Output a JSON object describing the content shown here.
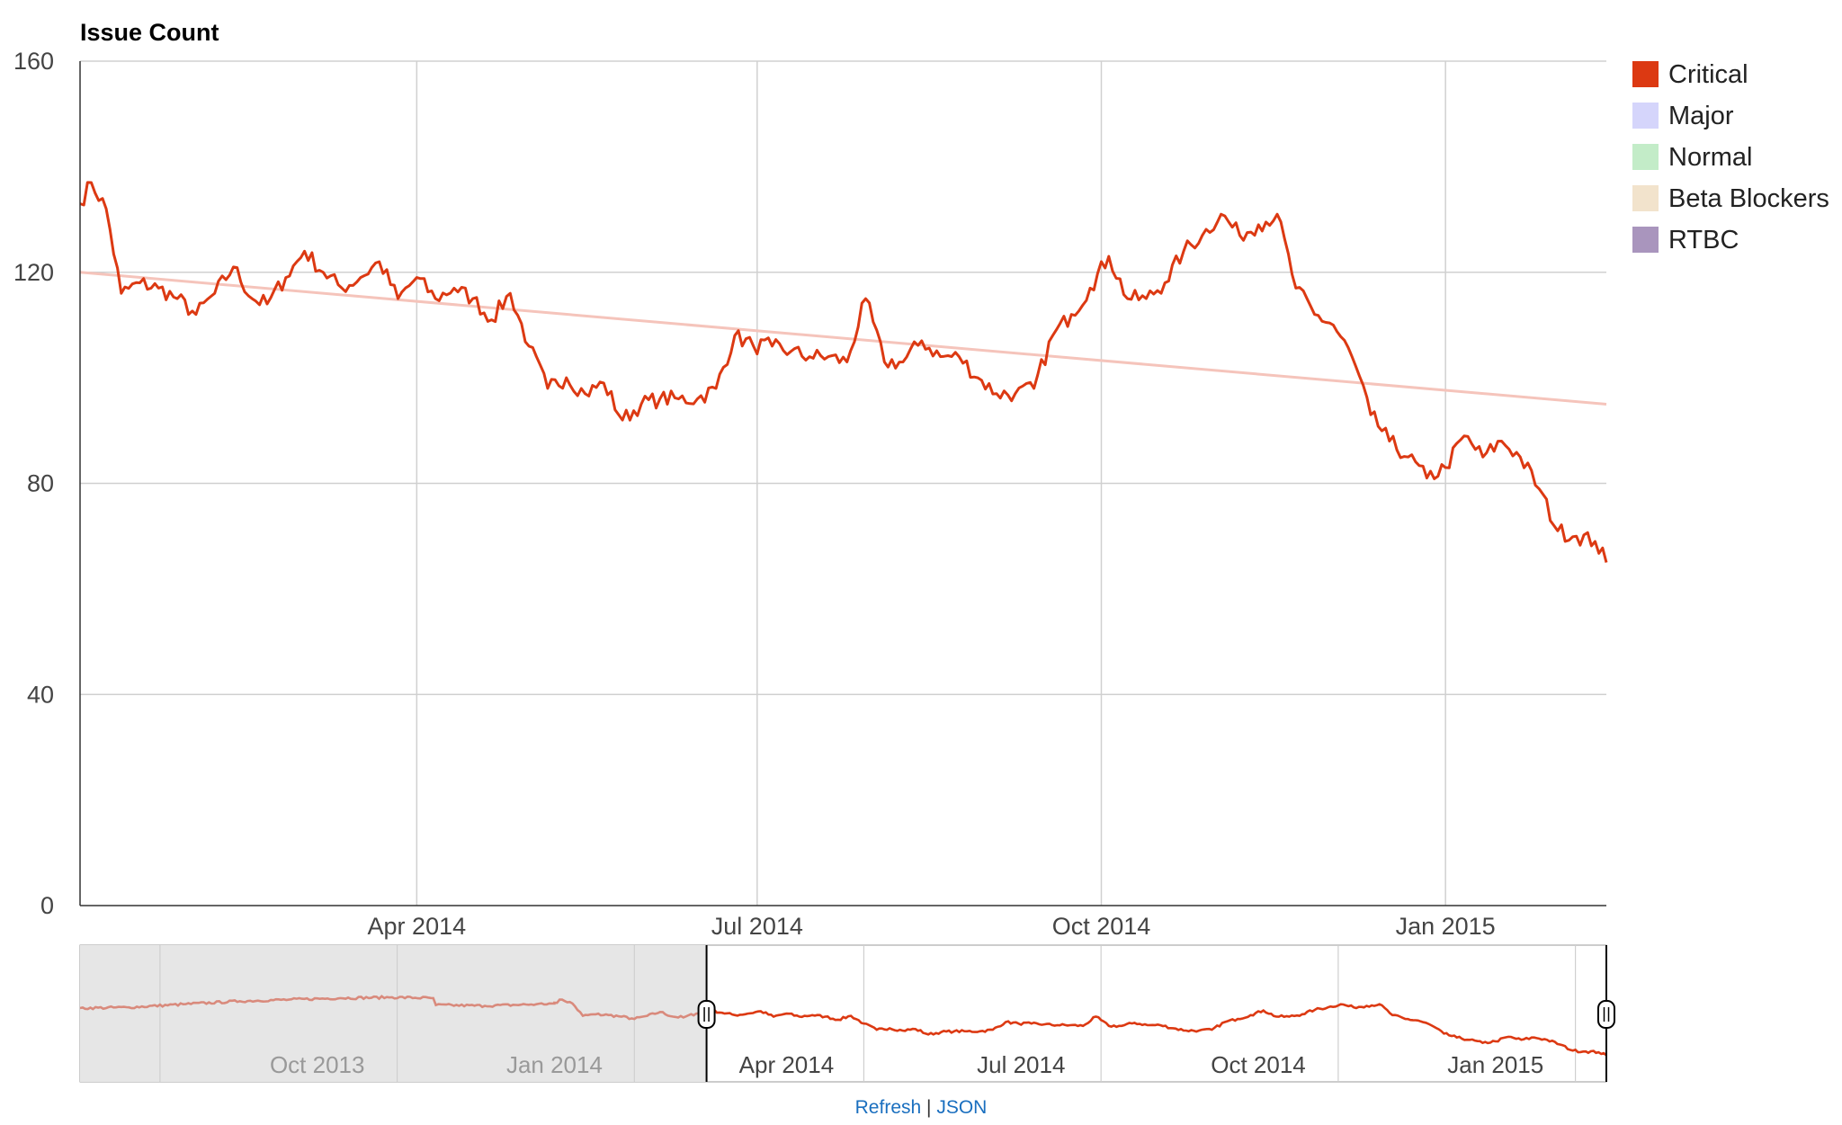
{
  "chart_data": {
    "type": "line",
    "title": "Issue Count",
    "x_axis": {
      "ticks": [
        "Apr 2014",
        "Jul 2014",
        "Oct 2014",
        "Jan 2015"
      ]
    },
    "y_axis": {
      "ticks": [
        "160",
        "120",
        "80",
        "40",
        "0"
      ],
      "ylim": [
        0,
        160
      ]
    },
    "grid": true,
    "legend": {
      "position": "right",
      "items": [
        {
          "label": "Critical",
          "color": "#dc3912"
        },
        {
          "label": "Major",
          "color": "#d5d5fb"
        },
        {
          "label": "Normal",
          "color": "#c3ecc8"
        },
        {
          "label": "Beta Blockers",
          "color": "#f2e3cc"
        },
        {
          "label": "RTBC",
          "color": "#a995bd"
        }
      ]
    },
    "series": [
      {
        "name": "Critical",
        "color": "#dc3912",
        "x": [
          "2014-01-01",
          "2014-01-04",
          "2014-01-08",
          "2014-01-12",
          "2014-01-17",
          "2014-01-22",
          "2014-01-27",
          "2014-02-01",
          "2014-02-06",
          "2014-02-11",
          "2014-02-16",
          "2014-02-20",
          "2014-02-25",
          "2014-03-02",
          "2014-03-07",
          "2014-03-12",
          "2014-03-17",
          "2014-03-22",
          "2014-03-27",
          "2014-04-01",
          "2014-04-06",
          "2014-04-11",
          "2014-04-16",
          "2014-04-21",
          "2014-04-26",
          "2014-05-01",
          "2014-05-06",
          "2014-05-11",
          "2014-05-16",
          "2014-05-21",
          "2014-05-26",
          "2014-05-31",
          "2014-06-05",
          "2014-06-10",
          "2014-06-15",
          "2014-06-20",
          "2014-06-25",
          "2014-06-30",
          "2014-07-05",
          "2014-07-10",
          "2014-07-15",
          "2014-07-20",
          "2014-07-25",
          "2014-07-30",
          "2014-08-04",
          "2014-08-09",
          "2014-08-14",
          "2014-08-19",
          "2014-08-24",
          "2014-08-29",
          "2014-09-03",
          "2014-09-08",
          "2014-09-13",
          "2014-09-18",
          "2014-09-23",
          "2014-09-28",
          "2014-10-03",
          "2014-10-08",
          "2014-10-13",
          "2014-10-18",
          "2014-10-23",
          "2014-10-28",
          "2014-11-02",
          "2014-11-07",
          "2014-11-12",
          "2014-11-17",
          "2014-11-22",
          "2014-11-27",
          "2014-12-02",
          "2014-12-07",
          "2014-12-12",
          "2014-12-17",
          "2014-12-22",
          "2014-12-27",
          "2015-01-01",
          "2015-01-06",
          "2015-01-11",
          "2015-01-16",
          "2015-01-21",
          "2015-01-26",
          "2015-01-31",
          "2015-02-05",
          "2015-02-10",
          "2015-02-13"
        ],
        "values": [
          133,
          137,
          132,
          116,
          118,
          117,
          115,
          112,
          116,
          121,
          115,
          114,
          119,
          124,
          120,
          117,
          119,
          122,
          115,
          119,
          115,
          117,
          115,
          111,
          116,
          106,
          98,
          100,
          97,
          99,
          92,
          95,
          96,
          96,
          96,
          98,
          108,
          106,
          106,
          105,
          104,
          104,
          103,
          115,
          103,
          103,
          107,
          104,
          104,
          100,
          97,
          97,
          98,
          108,
          112,
          117,
          123,
          115,
          115,
          118,
          124,
          127,
          131,
          127,
          129,
          131,
          117,
          112,
          110,
          104,
          93,
          88,
          85,
          81,
          83,
          89,
          85,
          88,
          85,
          79,
          71,
          70,
          69,
          65
        ]
      }
    ],
    "trendline": {
      "x": [
        "2014-01-01",
        "2015-02-13"
      ],
      "values": [
        120,
        95
      ]
    },
    "navigator": {
      "x_ticks": [
        "Oct 2013",
        "Jan 2014",
        "Apr 2014",
        "Jul 2014",
        "Oct 2014",
        "Jan 2015"
      ],
      "selected_range": [
        "2014-03-01",
        "2015-02-13"
      ]
    }
  },
  "footer": {
    "refresh_label": "Refresh",
    "separator": "|",
    "json_label": "JSON"
  }
}
